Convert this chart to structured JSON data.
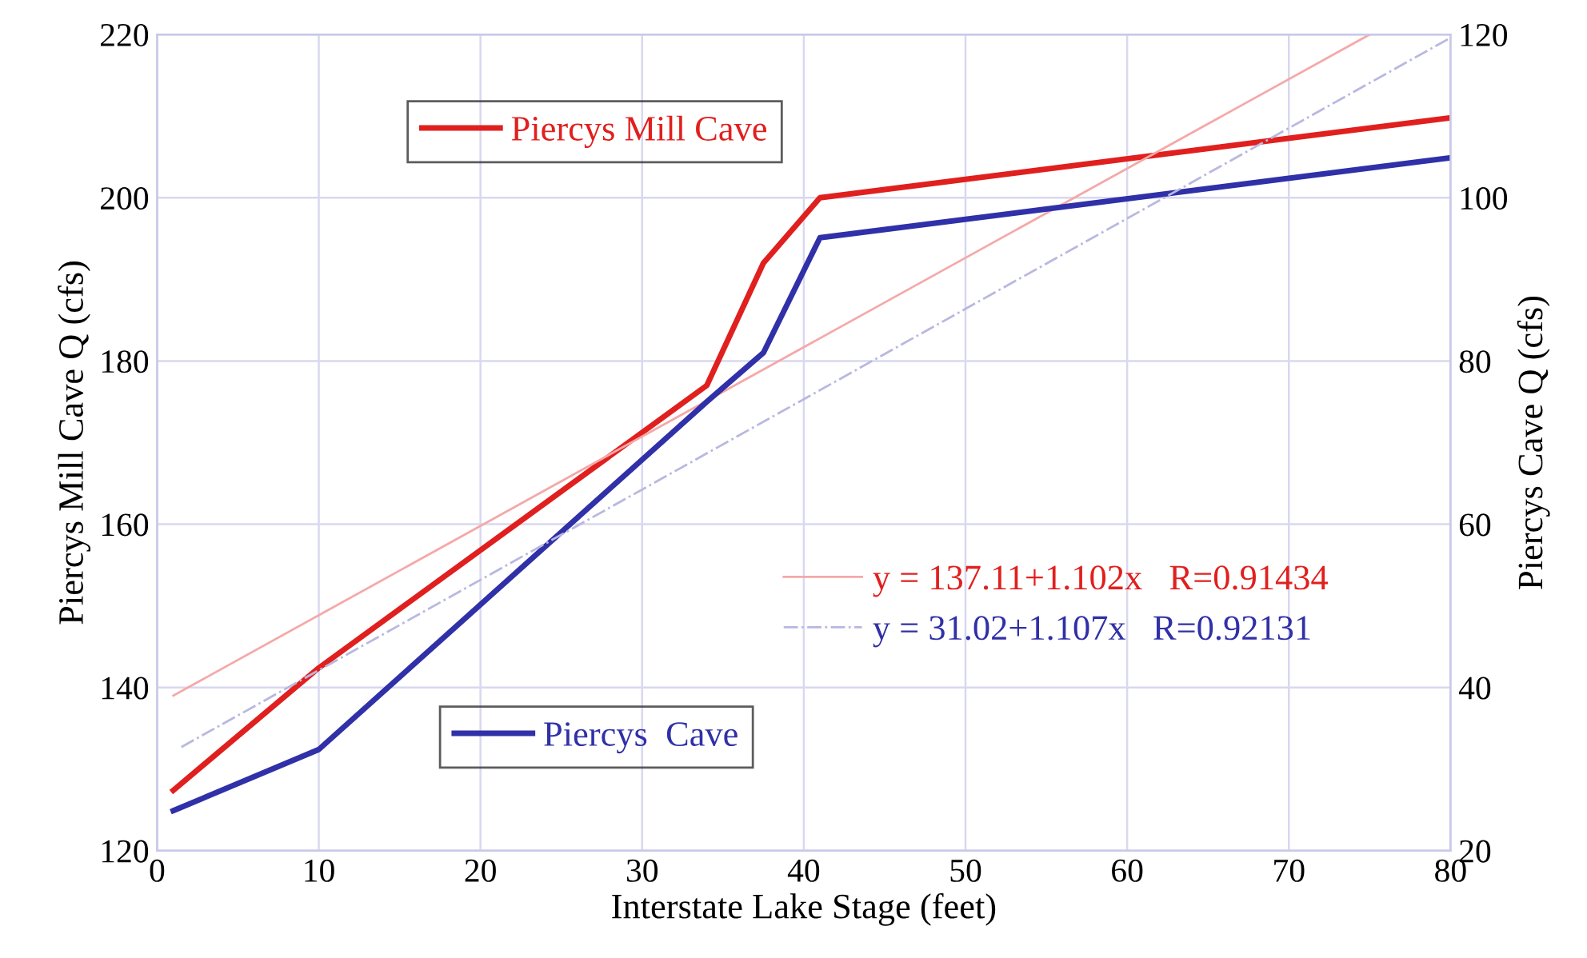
{
  "chart_data": {
    "type": "line",
    "xlabel": "Interstate Lake Stage (feet)",
    "ylabel": "Piercys Mill Cave Q (cfs)",
    "y2label": "Piercys Cave Q (cfs)",
    "series": [
      {
        "name": "Piercys Mill Cave",
        "color": "#e0201e",
        "x": [
          1,
          10,
          34,
          37.5,
          41,
          80
        ],
        "values": [
          127.4,
          142.4,
          177,
          192,
          200,
          209.8
        ]
      },
      {
        "name": "Piercys  Cave",
        "color": "#3030a8",
        "axis": "y2",
        "x": [
          1,
          10,
          34,
          37.5,
          41,
          80
        ],
        "values": [
          24.9,
          32.4,
          75,
          81,
          95.1,
          104.9
        ]
      },
      {
        "name": "y = 137.11+1.102x   R=0.91434",
        "color": "#f5a8a8",
        "x": [
          1,
          75
        ],
        "values": [
          139,
          220
        ]
      },
      {
        "name": "y = 31.02+1.107x   R=0.92131",
        "color": "#b8b8e0",
        "axis": "y2",
        "line_style": "dashdot",
        "x": [
          1.5,
          80
        ],
        "values": [
          32.7,
          119.6
        ]
      }
    ],
    "xlim": [
      0,
      80
    ],
    "xticks": [
      0,
      10,
      20,
      30,
      40,
      50,
      60,
      70,
      80
    ],
    "ylim": [
      120,
      220
    ],
    "yticks": [
      120,
      140,
      160,
      180,
      200,
      220
    ],
    "y2lim": [
      20,
      120
    ],
    "y2ticks": [
      20,
      40,
      60,
      80,
      100,
      120
    ],
    "grid": true,
    "legend": "center"
  }
}
